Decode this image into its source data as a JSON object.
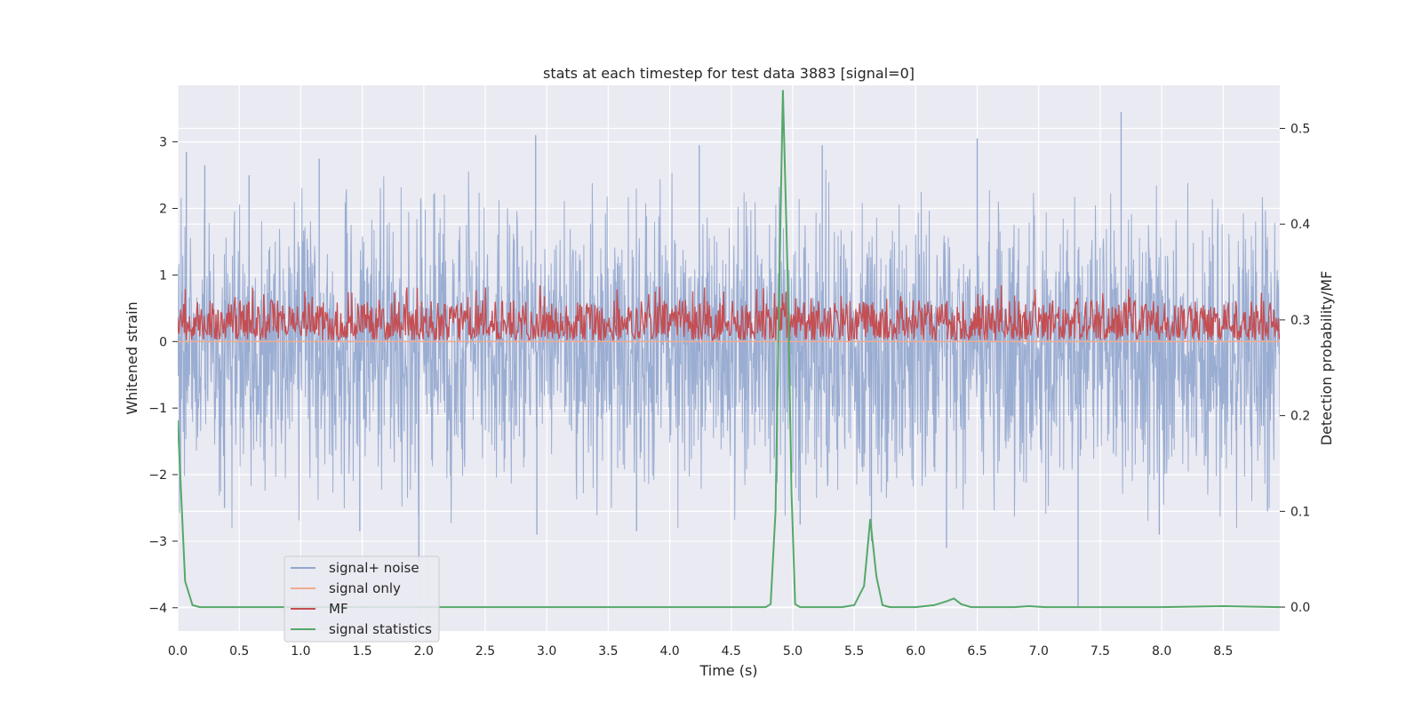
{
  "chart_data": {
    "type": "line",
    "title": "stats at each timestep for test data 3883 [signal=0]",
    "xlabel": "Time (s)",
    "ylabel": "Whitened strain",
    "y2label": "Detection probability/MF",
    "xlim": [
      0.0,
      8.96
    ],
    "ylim": [
      -4.35,
      3.85
    ],
    "y2lim": [
      -0.025,
      0.545
    ],
    "grid": true,
    "xticks": [
      "0.0",
      "0.5",
      "1.0",
      "1.5",
      "2.0",
      "2.5",
      "3.0",
      "3.5",
      "4.0",
      "4.5",
      "5.0",
      "5.5",
      "6.0",
      "6.5",
      "7.0",
      "7.5",
      "8.0",
      "8.5"
    ],
    "yticks": [
      "3",
      "2",
      "1",
      "0",
      "−1",
      "−2",
      "−3",
      "−4"
    ],
    "y2ticks": [
      "0.5",
      "0.4",
      "0.3",
      "0.2",
      "0.1",
      "0.0"
    ],
    "legend": {
      "position": "lower left",
      "entries": [
        {
          "label": "signal+ noise",
          "color": "#91a6ce"
        },
        {
          "label": "signal only",
          "color": "#efab90"
        },
        {
          "label": "MF",
          "color": "#c44e52"
        },
        {
          "label": "signal statistics",
          "color": "#55a868"
        }
      ]
    },
    "series": [
      {
        "name": "signal+ noise",
        "axis": "left",
        "color": "#91a6ce",
        "kind": "noise",
        "center": -0.15,
        "spread": [
          -2.0,
          1.8
        ],
        "extremes": [
          {
            "x": 0.07,
            "y": 2.85
          },
          {
            "x": 0.22,
            "y": 2.65
          },
          {
            "x": 0.58,
            "y": 2.5
          },
          {
            "x": 1.15,
            "y": 2.75
          },
          {
            "x": 2.91,
            "y": 3.1
          },
          {
            "x": 4.24,
            "y": 2.95
          },
          {
            "x": 5.24,
            "y": 2.95
          },
          {
            "x": 6.5,
            "y": 3.05
          },
          {
            "x": 7.67,
            "y": 3.45
          },
          {
            "x": 1.48,
            "y": -2.85
          },
          {
            "x": 1.96,
            "y": -3.3
          },
          {
            "x": 2.92,
            "y": -2.9
          },
          {
            "x": 3.73,
            "y": -2.85
          },
          {
            "x": 5.64,
            "y": -3.0
          },
          {
            "x": 6.25,
            "y": -3.1
          },
          {
            "x": 7.32,
            "y": -4.0
          },
          {
            "x": 7.98,
            "y": -2.9
          },
          {
            "x": 5.06,
            "y": -2.75
          },
          {
            "x": 0.38,
            "y": -2.5
          },
          {
            "x": 8.86,
            "y": -2.55
          }
        ]
      },
      {
        "name": "signal only",
        "axis": "left",
        "color": "#efab90",
        "x": [
          0.0,
          8.96
        ],
        "y": [
          0.0,
          0.0
        ]
      },
      {
        "name": "MF",
        "axis": "left",
        "color": "#c44e52",
        "kind": "noise",
        "base": 0.02,
        "spread": [
          0.0,
          0.95
        ]
      },
      {
        "name": "signal statistics",
        "axis": "right",
        "color": "#55a868",
        "x": [
          0.0,
          0.06,
          0.12,
          0.18,
          0.25,
          0.5,
          1.0,
          2.0,
          3.0,
          4.0,
          4.5,
          4.7,
          4.78,
          4.82,
          4.86,
          4.89,
          4.92,
          4.96,
          4.99,
          5.02,
          5.06,
          5.15,
          5.4,
          5.5,
          5.58,
          5.63,
          5.68,
          5.73,
          5.79,
          5.85,
          6.0,
          6.15,
          6.25,
          6.31,
          6.37,
          6.45,
          6.6,
          6.8,
          6.92,
          7.05,
          7.5,
          8.0,
          8.5,
          8.96
        ],
        "y": [
          0.195,
          0.027,
          0.002,
          0.0,
          0.0,
          0.0,
          0.0,
          0.0,
          0.0,
          0.0,
          0.0,
          0.0,
          0.0,
          0.003,
          0.1,
          0.33,
          0.54,
          0.34,
          0.12,
          0.003,
          0.0,
          0.0,
          0.0,
          0.002,
          0.022,
          0.092,
          0.032,
          0.002,
          0.0,
          0.0,
          0.0,
          0.002,
          0.006,
          0.009,
          0.003,
          0.0,
          0.0,
          0.0,
          0.001,
          0.0,
          0.0,
          0.0,
          0.001,
          0.0
        ]
      }
    ]
  }
}
